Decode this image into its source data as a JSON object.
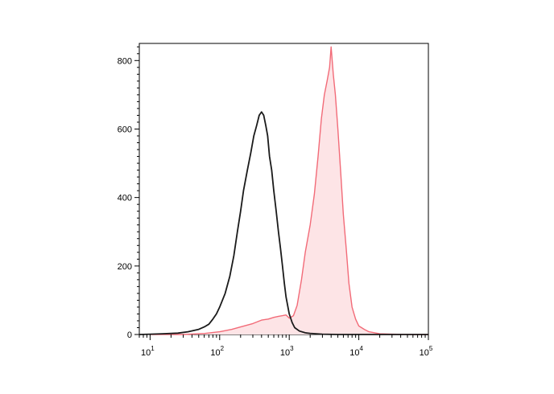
{
  "chart_data": {
    "type": "area",
    "title": "",
    "xlabel": "",
    "ylabel": "",
    "x_scale": "log",
    "xlim": [
      7,
      100000
    ],
    "ylim": [
      0,
      850
    ],
    "grid": false,
    "legend": "none",
    "x_ticks": [
      {
        "value": 10,
        "base": "10",
        "exp": "1"
      },
      {
        "value": 100,
        "base": "10",
        "exp": "2"
      },
      {
        "value": 1000,
        "base": "10",
        "exp": "3"
      },
      {
        "value": 10000,
        "base": "10",
        "exp": "4"
      },
      {
        "value": 100000,
        "base": "10",
        "exp": "5"
      }
    ],
    "y_ticks": [
      {
        "value": 0,
        "label": "0"
      },
      {
        "value": 200,
        "label": "200"
      },
      {
        "value": 400,
        "label": "400"
      },
      {
        "value": 600,
        "label": "600"
      },
      {
        "value": 800,
        "label": "800"
      }
    ],
    "series": [
      {
        "style": "filled",
        "color": "#f26b78",
        "fill": "#fde4e6",
        "points": [
          [
            10,
            0
          ],
          [
            30,
            0
          ],
          [
            60,
            3
          ],
          [
            100,
            8
          ],
          [
            150,
            15
          ],
          [
            200,
            22
          ],
          [
            300,
            32
          ],
          [
            400,
            42
          ],
          [
            500,
            45
          ],
          [
            600,
            50
          ],
          [
            700,
            53
          ],
          [
            800,
            55
          ],
          [
            900,
            57
          ],
          [
            1000,
            48
          ],
          [
            1150,
            55
          ],
          [
            1300,
            85
          ],
          [
            1500,
            160
          ],
          [
            1700,
            240
          ],
          [
            2000,
            320
          ],
          [
            2300,
            410
          ],
          [
            2600,
            520
          ],
          [
            2900,
            630
          ],
          [
            3200,
            700
          ],
          [
            3500,
            740
          ],
          [
            3800,
            780
          ],
          [
            4000,
            840
          ],
          [
            4300,
            760
          ],
          [
            4600,
            700
          ],
          [
            5000,
            600
          ],
          [
            5500,
            470
          ],
          [
            6000,
            350
          ],
          [
            6600,
            250
          ],
          [
            7200,
            150
          ],
          [
            8000,
            80
          ],
          [
            9000,
            45
          ],
          [
            10000,
            25
          ],
          [
            12000,
            15
          ],
          [
            14000,
            8
          ],
          [
            17000,
            5
          ],
          [
            20000,
            2
          ],
          [
            30000,
            1
          ],
          [
            60000,
            0
          ],
          [
            100000,
            0
          ]
        ]
      },
      {
        "style": "line",
        "color": "#1a1a1a",
        "points": [
          [
            7,
            0
          ],
          [
            10,
            1
          ],
          [
            15,
            2
          ],
          [
            25,
            4
          ],
          [
            35,
            8
          ],
          [
            50,
            15
          ],
          [
            60,
            22
          ],
          [
            70,
            30
          ],
          [
            80,
            45
          ],
          [
            90,
            60
          ],
          [
            100,
            80
          ],
          [
            120,
            120
          ],
          [
            140,
            170
          ],
          [
            160,
            230
          ],
          [
            180,
            300
          ],
          [
            200,
            360
          ],
          [
            220,
            420
          ],
          [
            250,
            480
          ],
          [
            280,
            530
          ],
          [
            310,
            580
          ],
          [
            340,
            610
          ],
          [
            370,
            640
          ],
          [
            400,
            650
          ],
          [
            430,
            640
          ],
          [
            460,
            610
          ],
          [
            490,
            580
          ],
          [
            520,
            520
          ],
          [
            560,
            480
          ],
          [
            600,
            420
          ],
          [
            650,
            360
          ],
          [
            700,
            300
          ],
          [
            750,
            250
          ],
          [
            800,
            200
          ],
          [
            850,
            150
          ],
          [
            900,
            110
          ],
          [
            1000,
            60
          ],
          [
            1100,
            35
          ],
          [
            1200,
            20
          ],
          [
            1400,
            10
          ],
          [
            1700,
            5
          ],
          [
            2000,
            3
          ],
          [
            3000,
            1
          ],
          [
            5000,
            0
          ],
          [
            10000,
            0
          ],
          [
            100000,
            0
          ]
        ]
      }
    ]
  }
}
